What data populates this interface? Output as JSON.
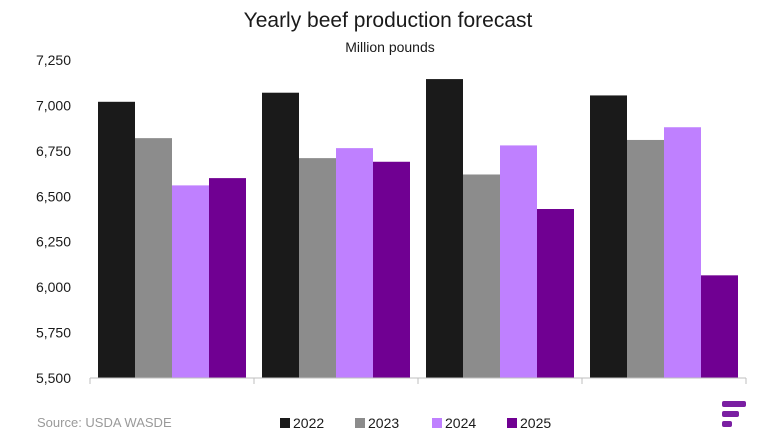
{
  "chart_data": {
    "type": "bar",
    "title": "Yearly beef production forecast",
    "subtitle": "Million pounds",
    "xlabel": "",
    "ylabel": "",
    "ylim": [
      5500,
      7250
    ],
    "yticks": [
      "7,250",
      "7,000",
      "6,750",
      "6,500",
      "6,250",
      "6,000",
      "5,750",
      "5,500"
    ],
    "ytick_values": [
      7250,
      7000,
      6750,
      6500,
      6250,
      6000,
      5750,
      5500
    ],
    "groups": 4,
    "legend_position": "bottom",
    "grid": false,
    "series": [
      {
        "name": "2022",
        "color": "#1a1a1a",
        "values": [
          7020,
          7070,
          7145,
          7055
        ]
      },
      {
        "name": "2023",
        "color": "#8c8c8c",
        "values": [
          6820,
          6710,
          6620,
          6810
        ]
      },
      {
        "name": "2024",
        "color": "#bf80ff",
        "values": [
          6560,
          6765,
          6780,
          6880
        ]
      },
      {
        "name": "2025",
        "color": "#700092",
        "values": [
          6600,
          6690,
          6430,
          6065
        ]
      }
    ]
  },
  "source": "Source: USDA WASDE",
  "logo_icon": "brand-logo-icon",
  "logo_color": "#7a1fa2"
}
